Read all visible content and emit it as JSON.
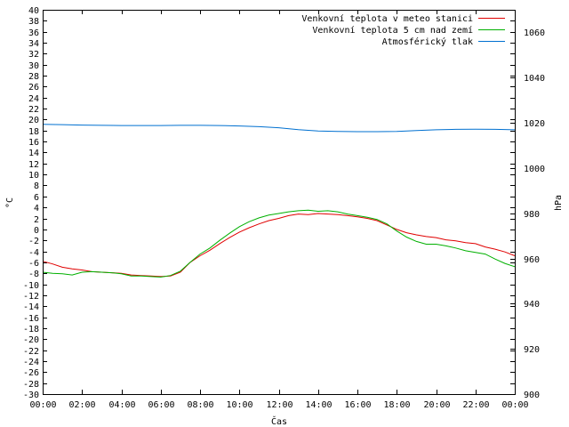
{
  "chart_data": {
    "type": "line",
    "xlabel": "Čas",
    "ylabel": "°C",
    "y2label": "hPa",
    "ylim": [
      -30,
      40
    ],
    "y2lim": [
      900,
      1070
    ],
    "y_ticks": [
      -30,
      -28,
      -26,
      -24,
      -22,
      -20,
      -18,
      -16,
      -14,
      -12,
      -10,
      -8,
      -6,
      -4,
      -2,
      0,
      2,
      4,
      6,
      8,
      10,
      12,
      14,
      16,
      18,
      20,
      22,
      24,
      26,
      28,
      30,
      32,
      34,
      36,
      38,
      40
    ],
    "y2_ticks": [
      900,
      920,
      940,
      960,
      980,
      1000,
      1020,
      1040,
      1060
    ],
    "x_ticks": [
      "00:00",
      "02:00",
      "04:00",
      "06:00",
      "08:00",
      "10:00",
      "12:00",
      "14:00",
      "16:00",
      "18:00",
      "20:00",
      "22:00",
      "00:00"
    ],
    "x_hours": [
      0,
      2,
      4,
      6,
      8,
      10,
      12,
      14,
      16,
      18,
      20,
      22,
      24
    ],
    "grid": false,
    "legend_position": "top-right",
    "series": [
      {
        "name": "Venkovní teplota v meteo stanici",
        "color": "#e00000",
        "axis": "left",
        "x": [
          0,
          0.5,
          1,
          1.5,
          2,
          2.5,
          3,
          3.5,
          4,
          4.5,
          5,
          5.5,
          6,
          6.5,
          7,
          7.5,
          8,
          8.5,
          9,
          9.5,
          10,
          10.5,
          11,
          11.5,
          12,
          12.5,
          13,
          13.5,
          14,
          14.5,
          15,
          15.5,
          16,
          16.5,
          17,
          17.5,
          18,
          18.5,
          19,
          19.5,
          20,
          20.5,
          21,
          21.5,
          22,
          22.5,
          23,
          23.5,
          24
        ],
        "values": [
          -5.8,
          -6.3,
          -6.9,
          -7.2,
          -7.4,
          -7.7,
          -7.8,
          -7.9,
          -8.0,
          -8.3,
          -8.4,
          -8.5,
          -8.6,
          -8.5,
          -7.8,
          -6.0,
          -4.8,
          -3.8,
          -2.6,
          -1.5,
          -0.5,
          0.3,
          1.0,
          1.6,
          2.0,
          2.5,
          2.8,
          2.7,
          2.9,
          2.8,
          2.7,
          2.5,
          2.3,
          2.0,
          1.6,
          0.8,
          0.0,
          -0.6,
          -1.0,
          -1.3,
          -1.5,
          -1.9,
          -2.1,
          -2.4,
          -2.6,
          -3.2,
          -3.6,
          -4.1,
          -4.8
        ]
      },
      {
        "name": "Venkovní teplota 5 cm nad zemí",
        "color": "#00b000",
        "axis": "left",
        "x": [
          0,
          0.5,
          1,
          1.5,
          2,
          2.5,
          3,
          3.5,
          4,
          4.5,
          5,
          5.5,
          6,
          6.5,
          7,
          7.5,
          8,
          8.5,
          9,
          9.5,
          10,
          10.5,
          11,
          11.5,
          12,
          12.5,
          13,
          13.5,
          14,
          14.5,
          15,
          15.5,
          16,
          16.5,
          17,
          17.5,
          18,
          18.5,
          19,
          19.5,
          20,
          20.5,
          21,
          21.5,
          22,
          22.5,
          23,
          23.5,
          24
        ],
        "values": [
          -7.8,
          -8.0,
          -8.1,
          -8.3,
          -7.8,
          -7.7,
          -7.8,
          -7.9,
          -8.1,
          -8.5,
          -8.5,
          -8.6,
          -8.7,
          -8.4,
          -7.6,
          -6.0,
          -4.5,
          -3.4,
          -2.0,
          -0.7,
          0.5,
          1.4,
          2.1,
          2.6,
          2.9,
          3.2,
          3.4,
          3.5,
          3.3,
          3.4,
          3.2,
          2.8,
          2.5,
          2.2,
          1.8,
          1.0,
          -0.3,
          -1.4,
          -2.2,
          -2.7,
          -2.7,
          -3.0,
          -3.4,
          -3.9,
          -4.2,
          -4.5,
          -5.4,
          -6.2,
          -6.8
        ]
      },
      {
        "name": "Atmosférický tlak",
        "color": "#0070d0",
        "axis": "right",
        "x": [
          0,
          1,
          2,
          3,
          4,
          5,
          6,
          7,
          8,
          9,
          10,
          11,
          12,
          13,
          14,
          15,
          16,
          17,
          18,
          19,
          20,
          21,
          22,
          23,
          24
        ],
        "values": [
          1019.3,
          1019.2,
          1019.0,
          1018.9,
          1018.8,
          1018.8,
          1018.8,
          1018.9,
          1018.9,
          1018.8,
          1018.6,
          1018.3,
          1017.8,
          1017.0,
          1016.4,
          1016.2,
          1016.1,
          1016.1,
          1016.2,
          1016.6,
          1016.9,
          1017.1,
          1017.2,
          1017.1,
          1016.9
        ]
      }
    ]
  }
}
